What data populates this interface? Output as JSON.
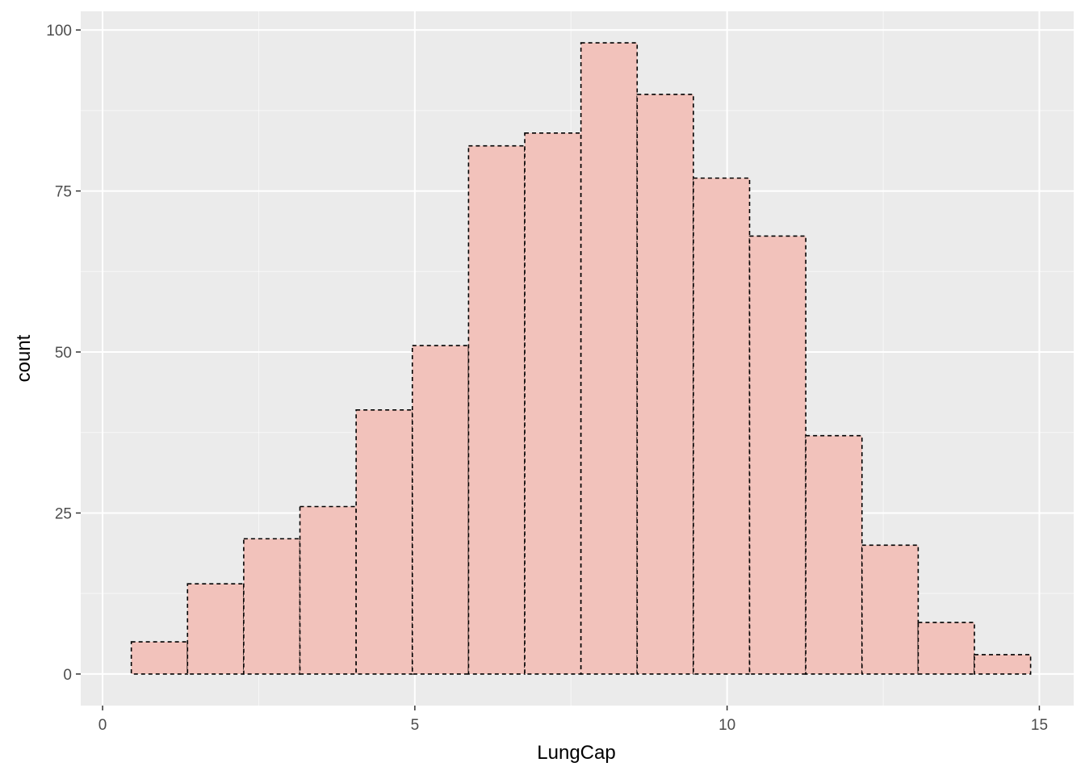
{
  "chart_data": {
    "type": "bar",
    "title": "",
    "xlabel": "LungCap",
    "ylabel": "count",
    "xlim": [
      -0.35,
      15.55
    ],
    "ylim": [
      -4.9,
      102.9
    ],
    "x_ticks": [
      0,
      5,
      10,
      15
    ],
    "x_tick_labels": [
      "0",
      "5",
      "10",
      "15"
    ],
    "y_ticks": [
      0,
      25,
      50,
      75,
      100
    ],
    "y_tick_labels": [
      "0",
      "25",
      "50",
      "75",
      "100"
    ],
    "grid": true,
    "bin_edges": [
      0.46,
      1.36,
      2.26,
      3.16,
      4.06,
      4.96,
      5.86,
      6.76,
      7.66,
      8.56,
      9.46,
      10.36,
      11.26,
      12.16,
      13.06,
      13.96,
      14.86
    ],
    "values": [
      5,
      14,
      21,
      26,
      41,
      51,
      82,
      84,
      98,
      90,
      77,
      68,
      37,
      20,
      8,
      3
    ],
    "colors": {
      "panel_background": "#ebebeb",
      "grid_major": "#ffffff",
      "bar_fill": "#f2c2bb",
      "bar_outline": "#000000"
    },
    "bar_outline_style": "dashed"
  }
}
